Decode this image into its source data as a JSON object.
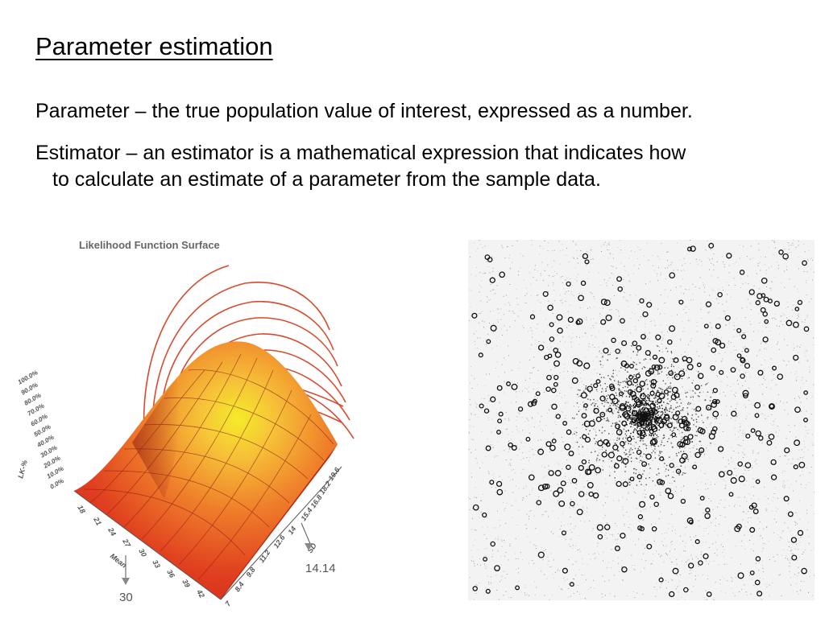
{
  "slide": {
    "title": "Parameter estimation",
    "definitions": [
      {
        "line1": "Parameter – the true population value of interest, expressed as a number."
      },
      {
        "line1": "Estimator – an estimator is a mathematical expression that indicates how",
        "line2": "to calculate an estimate of a parameter from the sample data."
      }
    ]
  },
  "likelihood_figure": {
    "title": "Likelihood Function Surface",
    "z_axis_label": "LK-%",
    "z_ticks": [
      "100.0%",
      "90.0%",
      "80.0%",
      "70.0%",
      "60.0%",
      "50.0%",
      "40.0%",
      "30.0%",
      "20.0%",
      "10.0%",
      "0.0%"
    ],
    "x_axis_label": "Mean",
    "x_ticks": [
      "18",
      "21",
      "24",
      "27",
      "30",
      "33",
      "36",
      "39",
      "42"
    ],
    "y_axis_label": "SD",
    "y_ticks": [
      "19.6",
      "18.2",
      "16.8",
      "15.4",
      "14",
      "12.6",
      "11.2",
      "9.8",
      "8.4",
      "7"
    ],
    "mean_marker": "30",
    "sd_marker": "14.14",
    "colors": {
      "surface_low": "#d9261c",
      "surface_high": "#f4ec2a",
      "contour": "#d94a2c"
    }
  },
  "scatter_figure": {
    "description_icon": "star-field-image"
  }
}
